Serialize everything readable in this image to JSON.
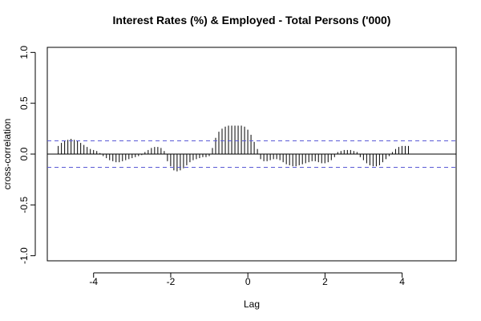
{
  "chart_data": {
    "type": "bar",
    "subtype": "cross-correlation stem plot",
    "title": "Interest Rates (%) & Employed - Total Persons ('000)",
    "xlabel": "Lag",
    "ylabel": "cross-correlation",
    "xlim": [
      -5.2,
      5.4
    ],
    "ylim": [
      -1.05,
      1.05
    ],
    "xticks": [
      "-4",
      "-2",
      "0",
      "2",
      "4"
    ],
    "xtick_values": [
      -4,
      -2,
      0,
      2,
      4
    ],
    "yticks": [
      "-1.0",
      "-0.5",
      "0.0",
      "0.5",
      "1.0"
    ],
    "ytick_values": [
      -1.0,
      -0.5,
      0.0,
      0.5,
      1.0
    ],
    "lag_start": -4.917,
    "lag_step": 0.0833,
    "confidence_bound": 0.13,
    "colors": {
      "stem": "#000000",
      "bound": "#5b5bd6",
      "zero": "#000000"
    },
    "values": [
      0.08,
      0.11,
      0.13,
      0.14,
      0.15,
      0.14,
      0.13,
      0.11,
      0.09,
      0.07,
      0.05,
      0.04,
      0.03,
      0.01,
      -0.02,
      -0.04,
      -0.06,
      -0.07,
      -0.08,
      -0.08,
      -0.07,
      -0.06,
      -0.05,
      -0.04,
      -0.03,
      -0.02,
      -0.01,
      0.02,
      0.04,
      0.06,
      0.07,
      0.07,
      0.06,
      0.03,
      -0.07,
      -0.12,
      -0.16,
      -0.17,
      -0.16,
      -0.14,
      -0.11,
      -0.08,
      -0.06,
      -0.05,
      -0.04,
      -0.03,
      -0.03,
      -0.02,
      0.06,
      0.16,
      0.22,
      0.25,
      0.27,
      0.28,
      0.28,
      0.28,
      0.28,
      0.28,
      0.27,
      0.24,
      0.19,
      0.12,
      0.05,
      -0.05,
      -0.07,
      -0.07,
      -0.06,
      -0.05,
      -0.05,
      -0.06,
      -0.08,
      -0.1,
      -0.11,
      -0.12,
      -0.12,
      -0.11,
      -0.1,
      -0.09,
      -0.08,
      -0.07,
      -0.07,
      -0.08,
      -0.09,
      -0.09,
      -0.08,
      -0.06,
      -0.03,
      0.02,
      0.03,
      0.04,
      0.04,
      0.04,
      0.03,
      0.02,
      -0.03,
      -0.06,
      -0.09,
      -0.11,
      -0.12,
      -0.12,
      -0.11,
      -0.08,
      -0.05,
      -0.02,
      0.02,
      0.05,
      0.07,
      0.08,
      0.08,
      0.08
    ]
  }
}
